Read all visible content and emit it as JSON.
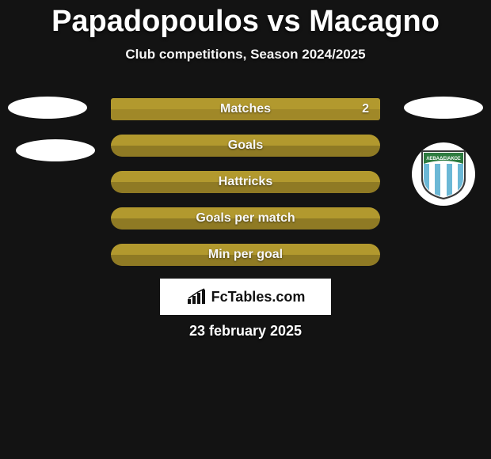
{
  "title": "Papadopoulos vs Macagno",
  "subtitle": "Club competitions, Season 2024/2025",
  "stats": [
    {
      "label": "Matches",
      "value": "2",
      "color_a": "#b2992e",
      "color_b": "#a08828",
      "rounded": false
    },
    {
      "label": "Goals",
      "value": "",
      "color_a": "#b2992e",
      "color_b": "#8f7a24",
      "rounded": true
    },
    {
      "label": "Hattricks",
      "value": "",
      "color_a": "#b2992e",
      "color_b": "#8f7a24",
      "rounded": true
    },
    {
      "label": "Goals per match",
      "value": "",
      "color_a": "#b2992e",
      "color_b": "#8f7a24",
      "rounded": true
    },
    {
      "label": "Min per goal",
      "value": "",
      "color_a": "#b2992e",
      "color_b": "#8f7a24",
      "rounded": true
    }
  ],
  "brand": "FcTables.com",
  "date": "23 february 2025",
  "club_badge": {
    "arc_text": "ΛΕΒΑΔΕΙΑΚΟΣ",
    "top_color": "#2d7b3f",
    "stripe_a": "#6bb8d6",
    "stripe_b": "#ffffff",
    "outline": "#3a3a3a"
  },
  "colors": {
    "background": "#131313",
    "text": "#ffffff",
    "ellipse": "#ffffff",
    "brand_box_bg": "#ffffff",
    "brand_text": "#111111"
  }
}
